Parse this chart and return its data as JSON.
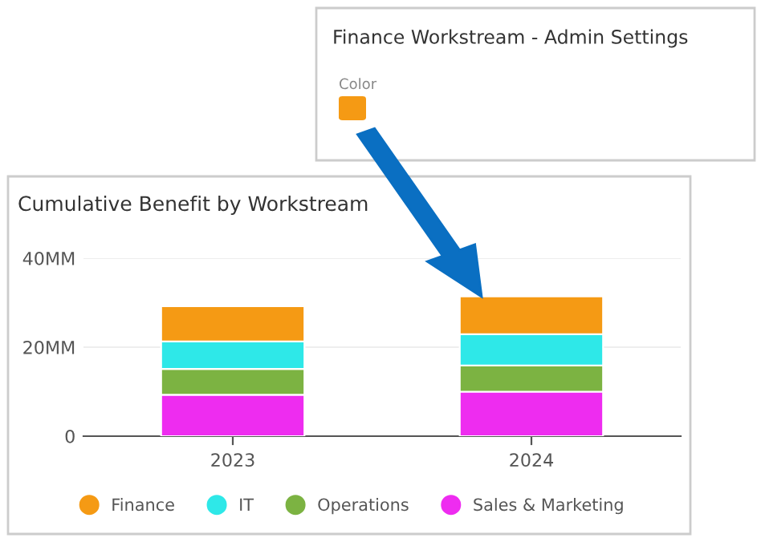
{
  "chart_data": {
    "type": "bar",
    "title": "Cumulative Benefit by Workstream",
    "categories": [
      "2023",
      "2024"
    ],
    "stacked": true,
    "series": [
      {
        "name": "Sales & Marketing",
        "color": "#ee2cf0",
        "values": [
          9.3,
          10.0
        ]
      },
      {
        "name": "Operations",
        "color": "#7cb342",
        "values": [
          5.8,
          5.9
        ]
      },
      {
        "name": "IT",
        "color": "#2ee8e8",
        "values": [
          6.2,
          7.0
        ]
      },
      {
        "name": "Finance",
        "color": "#f59a14",
        "values": [
          7.9,
          8.5
        ]
      }
    ],
    "ylim": [
      0,
      40
    ],
    "yticks": [
      {
        "value": 0,
        "label": "0"
      },
      {
        "value": 20,
        "label": "20MM"
      },
      {
        "value": 40,
        "label": "40MM"
      }
    ],
    "grid": "y",
    "legend": "bottom",
    "annotations": [
      "Finance Workstream - Admin Settings",
      "Color"
    ]
  }
}
